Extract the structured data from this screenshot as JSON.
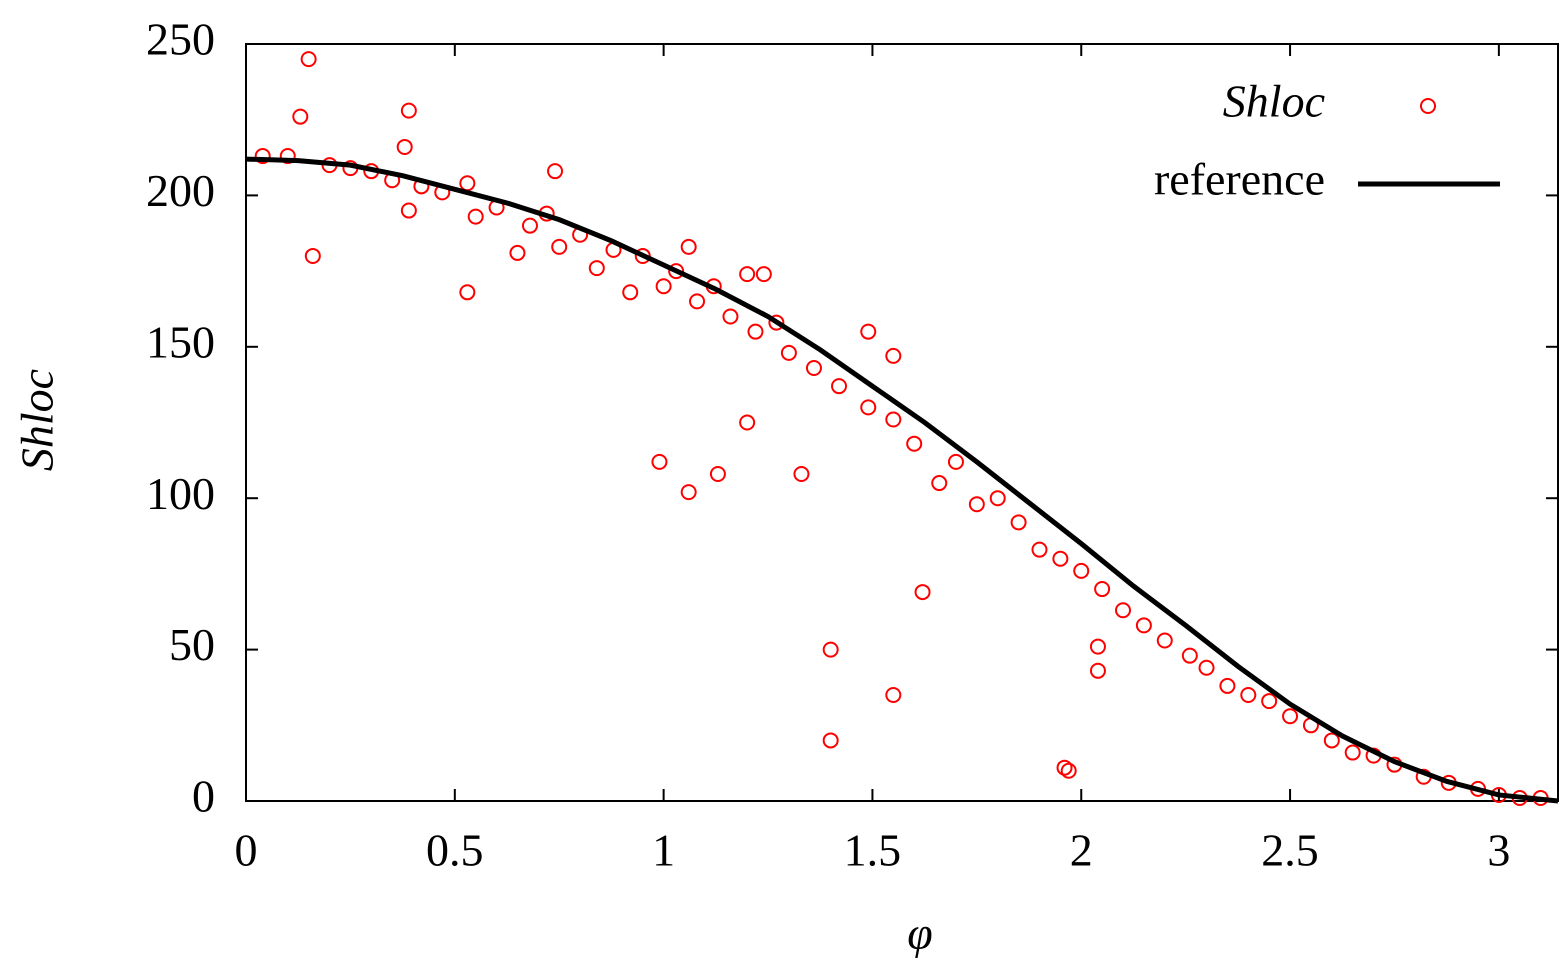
{
  "chart_data": {
    "type": "scatter",
    "x_label": "φ",
    "y_label": "Shloc",
    "xlim": [
      0,
      3.14159
    ],
    "ylim": [
      0,
      250
    ],
    "xticks": [
      0,
      0.5,
      1,
      1.5,
      2,
      2.5,
      3
    ],
    "yticks": [
      0,
      50,
      100,
      150,
      200,
      250
    ],
    "legend": "upper right",
    "series": [
      {
        "name": "Shloc",
        "color": "#ff0000",
        "style": "points",
        "x": [
          0.04,
          0.1,
          0.2,
          0.25,
          0.3,
          0.35,
          0.42,
          0.47,
          0.53,
          0.55,
          0.6,
          0.65,
          0.68,
          0.72,
          0.75,
          0.8,
          0.84,
          0.88,
          0.92,
          0.95,
          1.0,
          1.03,
          1.08,
          1.12,
          1.16,
          1.22,
          1.27,
          1.3,
          1.36,
          1.42,
          1.49,
          1.55,
          1.6,
          1.66,
          1.7,
          1.75,
          1.8,
          1.85,
          1.9,
          1.95,
          2.0,
          2.05,
          2.1,
          2.15,
          2.2,
          2.26,
          2.3,
          2.35,
          2.4,
          2.45,
          2.5,
          2.55,
          2.6,
          2.65,
          2.7,
          2.75,
          2.82,
          2.88,
          2.95,
          3.0,
          3.05,
          3.1,
          0.15,
          0.13,
          0.16,
          0.39,
          0.39,
          0.53,
          0.99,
          1.06,
          1.13,
          1.2,
          1.33,
          1.4,
          1.4,
          1.55,
          1.62,
          1.96,
          1.97,
          2.04,
          2.04,
          1.49,
          1.55,
          1.06,
          0.74,
          1.24,
          1.2,
          0.38
        ],
        "values": [
          213,
          213,
          210,
          209,
          208,
          205,
          203,
          201,
          204,
          193,
          196,
          181,
          190,
          194,
          183,
          187,
          176,
          182,
          168,
          180,
          170,
          175,
          165,
          170,
          160,
          155,
          158,
          148,
          143,
          137,
          130,
          126,
          118,
          105,
          112,
          98,
          100,
          92,
          83,
          80,
          76,
          70,
          63,
          58,
          53,
          48,
          44,
          38,
          35,
          33,
          28,
          25,
          20,
          16,
          15,
          12,
          8,
          6,
          4,
          2,
          1,
          1,
          245,
          226,
          180,
          228,
          195,
          168,
          112,
          102,
          108,
          125,
          108,
          50,
          20,
          35,
          69,
          11,
          10,
          51,
          43,
          155,
          147,
          183,
          208,
          174,
          174,
          216
        ]
      },
      {
        "name": "reference",
        "color": "#000000",
        "style": "line",
        "x": [
          0,
          0.125,
          0.25,
          0.375,
          0.5,
          0.625,
          0.75,
          0.875,
          1,
          1.125,
          1.25,
          1.375,
          1.5,
          1.625,
          1.75,
          1.875,
          2,
          2.125,
          2.25,
          2.375,
          2.5,
          2.625,
          2.75,
          2.875,
          3,
          3.14159
        ],
        "values": [
          212,
          211.5,
          210,
          206.5,
          202,
          197.5,
          192,
          185,
          177,
          169,
          160,
          149,
          137,
          125,
          112,
          98.5,
          85,
          71,
          58,
          44.5,
          32,
          21.5,
          13,
          6.5,
          2,
          0
        ]
      }
    ]
  }
}
